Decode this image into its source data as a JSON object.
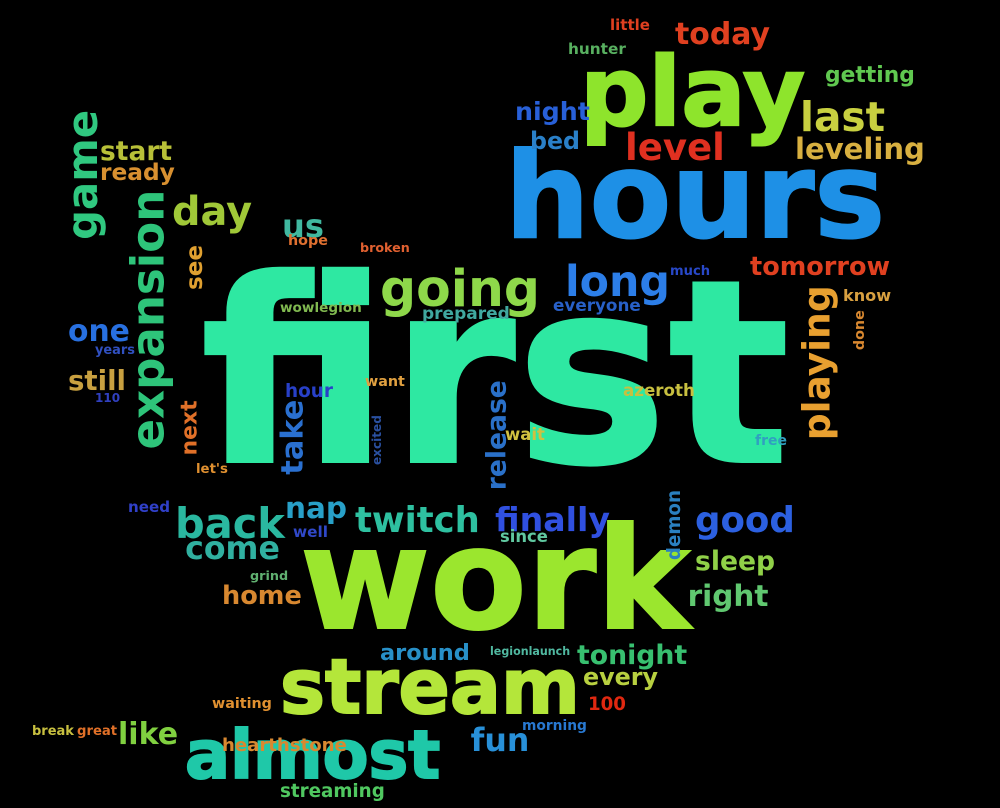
{
  "background": "#000000",
  "words": [
    {
      "text": "first",
      "color": "#2ee8a2"
    },
    {
      "text": "work",
      "color": "#9be62e"
    },
    {
      "text": "hours",
      "color": "#1e90e6"
    },
    {
      "text": "play",
      "color": "#8ee42c"
    },
    {
      "text": "stream",
      "color": "#b4e63a"
    },
    {
      "text": "almost",
      "color": "#1fc8a8"
    },
    {
      "text": "going",
      "color": "#8ed84a"
    },
    {
      "text": "expansion",
      "color": "#2ec47a"
    },
    {
      "text": "long",
      "color": "#2c7ee8"
    },
    {
      "text": "back",
      "color": "#2ab8a0"
    },
    {
      "text": "twitch",
      "color": "#2ec0a0"
    },
    {
      "text": "playing",
      "color": "#e8a030"
    },
    {
      "text": "level",
      "color": "#e03020"
    },
    {
      "text": "last",
      "color": "#c8d040"
    },
    {
      "text": "leveling",
      "color": "#d8b040"
    },
    {
      "text": "today",
      "color": "#e04020"
    },
    {
      "text": "finally",
      "color": "#3050e0"
    },
    {
      "text": "good",
      "color": "#2c60e0"
    },
    {
      "text": "game",
      "color": "#30c880"
    },
    {
      "text": "day",
      "color": "#a0c838"
    },
    {
      "text": "release",
      "color": "#2a70c8"
    },
    {
      "text": "nap",
      "color": "#28a0c8"
    },
    {
      "text": "come",
      "color": "#30b0a0"
    },
    {
      "text": "tonight",
      "color": "#38c070"
    },
    {
      "text": "tomorrow",
      "color": "#e04020"
    },
    {
      "text": "sleep",
      "color": "#90d048"
    },
    {
      "text": "like",
      "color": "#80d040"
    },
    {
      "text": "fun",
      "color": "#2890d8"
    },
    {
      "text": "home",
      "color": "#d88830"
    },
    {
      "text": "right",
      "color": "#60c870"
    },
    {
      "text": "one",
      "color": "#2870e0"
    },
    {
      "text": "still",
      "color": "#c8a040"
    },
    {
      "text": "start",
      "color": "#b8c038"
    },
    {
      "text": "ready",
      "color": "#d89030"
    },
    {
      "text": "night",
      "color": "#2860d8"
    },
    {
      "text": "bed",
      "color": "#2a80c8"
    },
    {
      "text": "getting",
      "color": "#60c850"
    },
    {
      "text": "take",
      "color": "#2a70d0"
    },
    {
      "text": "see",
      "color": "#e0a030"
    },
    {
      "text": "us",
      "color": "#40b8a0"
    },
    {
      "text": "next",
      "color": "#e07028"
    },
    {
      "text": "hour",
      "color": "#2840c8"
    },
    {
      "text": "around",
      "color": "#2890c8"
    },
    {
      "text": "every",
      "color": "#b8d040"
    },
    {
      "text": "streaming",
      "color": "#50c860"
    },
    {
      "text": "hearthstone",
      "color": "#d88830"
    },
    {
      "text": "hunter",
      "color": "#58b060"
    },
    {
      "text": "prepared",
      "color": "#40a8a0"
    },
    {
      "text": "everyone",
      "color": "#2860c8"
    },
    {
      "text": "wowlegion",
      "color": "#80b850"
    },
    {
      "text": "demon",
      "color": "#2a80c0"
    },
    {
      "text": "azeroth",
      "color": "#c8c040"
    },
    {
      "text": "legionlaunch",
      "color": "#50b8a0"
    },
    {
      "text": "know",
      "color": "#d8a040"
    },
    {
      "text": "done",
      "color": "#d88830"
    },
    {
      "text": "much",
      "color": "#2848c8"
    },
    {
      "text": "little",
      "color": "#e04020"
    },
    {
      "text": "hope",
      "color": "#e07030"
    },
    {
      "text": "broken",
      "color": "#e06030"
    },
    {
      "text": "want",
      "color": "#e0a040"
    },
    {
      "text": "wait",
      "color": "#d0c040"
    },
    {
      "text": "free",
      "color": "#30a0c0"
    },
    {
      "text": "excited",
      "color": "#2a50a0"
    },
    {
      "text": "let's",
      "color": "#e09030"
    },
    {
      "text": "need",
      "color": "#3040c8"
    },
    {
      "text": "well",
      "color": "#3048c8"
    },
    {
      "text": "since",
      "color": "#60c8a0"
    },
    {
      "text": "grind",
      "color": "#60b070"
    },
    {
      "text": "years",
      "color": "#3050c0"
    },
    {
      "text": "110",
      "color": "#3040c0"
    },
    {
      "text": "waiting",
      "color": "#e09030"
    },
    {
      "text": "break",
      "color": "#c8c040"
    },
    {
      "text": "great",
      "color": "#e07028"
    },
    {
      "text": "morning",
      "color": "#2878d0"
    },
    {
      "text": "100",
      "color": "#e02810"
    }
  ]
}
